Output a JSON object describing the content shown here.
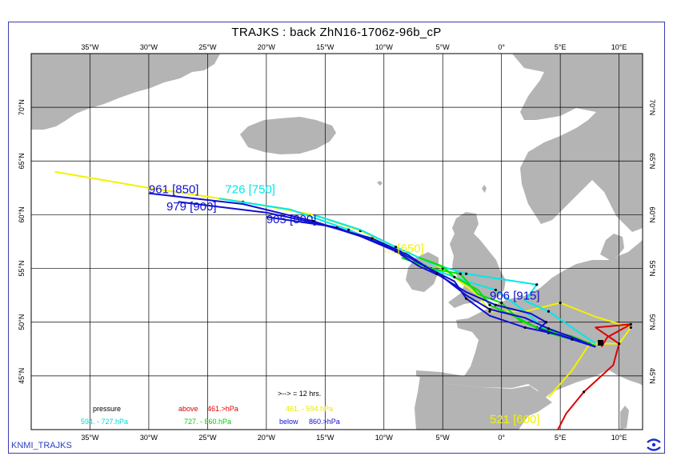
{
  "title": "TRAJKS : back ZhN16-1706z-96b_cP",
  "footer_label": "KNMI_TRAJKS",
  "logo_icon": "ecmwf-logo-icon",
  "map": {
    "lon_range": [
      -40,
      12
    ],
    "lat_range": [
      40,
      75
    ],
    "lon_ticks": [
      {
        "lon": -35,
        "label": "35°W"
      },
      {
        "lon": -30,
        "label": "30°W"
      },
      {
        "lon": -25,
        "label": "25°W"
      },
      {
        "lon": -20,
        "label": "20°W"
      },
      {
        "lon": -15,
        "label": "15°W"
      },
      {
        "lon": -10,
        "label": "10°W"
      },
      {
        "lon": -5,
        "label": "5°W"
      },
      {
        "lon": 0,
        "label": "0°"
      },
      {
        "lon": 5,
        "label": "5°E"
      },
      {
        "lon": 10,
        "label": "10°E"
      }
    ],
    "lat_ticks": [
      {
        "lat": 45,
        "label": "45°N"
      },
      {
        "lat": 50,
        "label": "50°N"
      },
      {
        "lat": 55,
        "label": "55°N"
      },
      {
        "lat": 60,
        "label": "60°N"
      },
      {
        "lat": 65,
        "label": "65°N"
      },
      {
        "lat": 70,
        "label": "70°N"
      }
    ],
    "colors": {
      "land": "#b4b4b4",
      "sea": "#ffffff",
      "grid": "#000000",
      "above": "#e00000",
      "yellow": "#f2f200",
      "green": "#00e000",
      "cyan": "#00e8e8",
      "below": "#1010d0"
    }
  },
  "legend": {
    "pressure": "pressure",
    "above": "above",
    "above_range": "461.>hPa",
    "yellow_range": "461. -   594.hPa",
    "cyan_range": "594. -   727.hPa",
    "green_range": "727. -   860.hPa",
    "below": "below",
    "below_range": "860.>hPa",
    "arrow_note": ">--> = 12 hrs."
  },
  "trajectory_labels": [
    {
      "text": "961 [850]",
      "color": "below",
      "lon": -30.0,
      "lat": 62.0
    },
    {
      "text": "726 [750]",
      "color": "cyan",
      "lon": -23.5,
      "lat": 62.0
    },
    {
      "text": "979 [900]",
      "color": "below",
      "lon": -28.5,
      "lat": 60.4
    },
    {
      "text": "905 [800]",
      "color": "below",
      "lon": -20.0,
      "lat": 59.2
    },
    {
      "text": "... [650]",
      "color": "yellow",
      "lon": -10.0,
      "lat": 56.5
    },
    {
      "text": "906 [915]",
      "color": "below",
      "lon": -1.0,
      "lat": 52.1
    },
    {
      "text": "521 [600]",
      "color": "yellow",
      "lon": -1.0,
      "lat": 40.6
    }
  ],
  "trajectories": [
    {
      "color": "yellow",
      "points": [
        [
          -38,
          64
        ],
        [
          -30,
          62.5
        ],
        [
          -22,
          61.2
        ],
        [
          -16,
          60
        ],
        [
          -12,
          58.5
        ],
        [
          -8,
          56.5
        ],
        [
          -5,
          55
        ],
        [
          -2,
          52.5
        ],
        [
          -1,
          51
        ],
        [
          2,
          51
        ],
        [
          5,
          51.8
        ],
        [
          8,
          50.5
        ],
        [
          11,
          49.5
        ],
        [
          10,
          48
        ],
        [
          7.5,
          48
        ],
        [
          6,
          45.5
        ],
        [
          4,
          43
        ]
      ]
    },
    {
      "color": "above",
      "points": [
        [
          8.5,
          47.7
        ],
        [
          9,
          48.6
        ],
        [
          11,
          49.8
        ],
        [
          8,
          49.5
        ],
        [
          10,
          48
        ],
        [
          9.5,
          46
        ],
        [
          7,
          43.5
        ],
        [
          5.5,
          41.5
        ],
        [
          4.8,
          40
        ]
      ]
    },
    {
      "color": "cyan",
      "points": [
        [
          -16,
          60
        ],
        [
          -12,
          58.6
        ],
        [
          -9,
          57
        ],
        [
          -6,
          55.5
        ],
        [
          -3,
          54.5
        ],
        [
          0,
          54
        ],
        [
          3,
          53.5
        ],
        [
          2,
          52
        ],
        [
          4,
          51
        ],
        [
          6,
          49.5
        ],
        [
          8,
          48
        ]
      ]
    },
    {
      "color": "cyan",
      "points": [
        [
          -24,
          61.5
        ],
        [
          -18,
          60.5
        ],
        [
          -13,
          58.6
        ],
        [
          -9,
          56.7
        ],
        [
          -6,
          55
        ],
        [
          -3,
          53.8
        ],
        [
          -0.5,
          53
        ],
        [
          2,
          51
        ],
        [
          4,
          49
        ],
        [
          8,
          47.8
        ]
      ]
    },
    {
      "color": "green",
      "points": [
        [
          -7,
          56
        ],
        [
          -5,
          55.2
        ],
        [
          -4,
          54.2
        ],
        [
          -2,
          53
        ],
        [
          -1,
          51.6
        ],
        [
          1,
          50.6
        ],
        [
          3,
          49.5
        ],
        [
          6,
          48.7
        ],
        [
          8,
          47.8
        ]
      ]
    },
    {
      "color": "green",
      "points": [
        [
          -8.5,
          56
        ],
        [
          -6,
          55
        ],
        [
          -3.5,
          54.5
        ],
        [
          -2,
          52.6
        ],
        [
          0,
          51.8
        ],
        [
          1.5,
          50.2
        ],
        [
          4,
          49
        ],
        [
          8,
          47.8
        ]
      ]
    },
    {
      "color": "below",
      "points": [
        [
          -30,
          62
        ],
        [
          -22,
          61
        ],
        [
          -16,
          59.4
        ],
        [
          -12,
          58
        ],
        [
          -9,
          56.6
        ],
        [
          -7,
          55.2
        ],
        [
          -5,
          54.2
        ],
        [
          -3,
          52.5
        ],
        [
          -1,
          51.2
        ],
        [
          2,
          50.4
        ],
        [
          4,
          49.4
        ],
        [
          6,
          48.6
        ],
        [
          8,
          47.7
        ]
      ]
    },
    {
      "color": "below",
      "points": [
        [
          -27.5,
          61.2
        ],
        [
          -20,
          60.2
        ],
        [
          -14,
          58.8
        ],
        [
          -9.5,
          57
        ],
        [
          -6.5,
          55.2
        ],
        [
          -4,
          53.8
        ],
        [
          -3,
          52.2
        ],
        [
          -1,
          50.6
        ],
        [
          2,
          49.5
        ],
        [
          5,
          48.8
        ],
        [
          8,
          47.7
        ]
      ]
    },
    {
      "color": "below",
      "points": [
        [
          -20,
          59.8
        ],
        [
          -15,
          59
        ],
        [
          -11,
          57.8
        ],
        [
          -8,
          56.3
        ],
        [
          -5.5,
          54.5
        ],
        [
          -3,
          52.8
        ],
        [
          -0.5,
          51.6
        ],
        [
          2.5,
          50.8
        ],
        [
          3.8,
          50
        ],
        [
          3.2,
          49.4
        ],
        [
          6,
          48.4
        ],
        [
          8,
          47.7
        ]
      ]
    }
  ]
}
